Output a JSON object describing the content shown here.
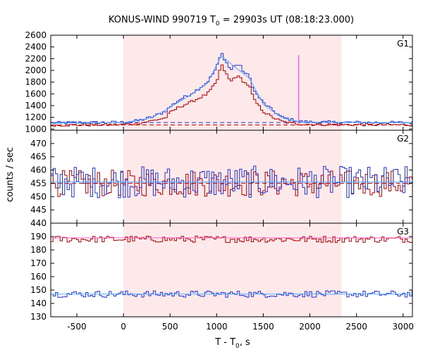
{
  "title": {
    "prefix": "KONUS-WIND 990719 T",
    "sub": "0",
    "suffix": " = 29903s UT (08:18:23.000)"
  },
  "xlabel": {
    "prefix": "T - T",
    "sub": "0",
    "suffix": ", s"
  },
  "ylabel": "counts / sec",
  "colors": {
    "red": "#b00000",
    "blue": "#2233cc",
    "light_blue": "#55aaff",
    "pink_line": "#ff66cc",
    "shade": "#fde8ea"
  },
  "chart_data": {
    "type": "line",
    "xlim": [
      -780,
      3100
    ],
    "shaded_interval": [
      0,
      2340
    ],
    "trigger_marker": {
      "x": 1880,
      "from": 1120,
      "to": 2260
    },
    "x_ticks": [
      -500,
      0,
      500,
      1000,
      1500,
      2000,
      2500,
      3000
    ],
    "x_tick_labels": [
      "-500",
      "0",
      "500",
      "1000",
      "1500",
      "2000",
      "2500",
      "3000"
    ],
    "panels": [
      {
        "id": "G1",
        "label": "G1",
        "ylim": [
          980,
          2600
        ],
        "y_ticks": [
          1000,
          1200,
          1400,
          1600,
          1800,
          2000,
          2200,
          2400,
          2600
        ],
        "y_tick_labels": [
          "1000",
          "1200",
          "1400",
          "1600",
          "1800",
          "2000",
          "2200",
          "2400",
          "2600"
        ],
        "background": [
          {
            "series": "red",
            "value": 1070
          },
          {
            "series": "blue",
            "value": 1110
          }
        ],
        "series": [
          {
            "color": "blue",
            "shape": [
              [
                -780,
                1105
              ],
              [
                0,
                1115
              ],
              [
                150,
                1140
              ],
              [
                300,
                1200
              ],
              [
                450,
                1300
              ],
              [
                500,
                1380
              ],
              [
                600,
                1500
              ],
              [
                700,
                1580
              ],
              [
                800,
                1680
              ],
              [
                900,
                1800
              ],
              [
                950,
                1920
              ],
              [
                1000,
                2050
              ],
              [
                1050,
                2300
              ],
              [
                1100,
                2150
              ],
              [
                1150,
                2000
              ],
              [
                1200,
                2100
              ],
              [
                1250,
                2080
              ],
              [
                1300,
                1960
              ],
              [
                1350,
                1900
              ],
              [
                1400,
                1650
              ],
              [
                1500,
                1450
              ],
              [
                1600,
                1320
              ],
              [
                1700,
                1200
              ],
              [
                1800,
                1160
              ],
              [
                1900,
                1130
              ],
              [
                2000,
                1120
              ],
              [
                2300,
                1115
              ],
              [
                3100,
                1110
              ]
            ],
            "noise": 25
          },
          {
            "color": "light_blue",
            "shape": [
              [
                -780,
                1100
              ],
              [
                0,
                1110
              ],
              [
                300,
                1190
              ],
              [
                500,
                1370
              ],
              [
                700,
                1560
              ],
              [
                900,
                1780
              ],
              [
                1050,
                2250
              ],
              [
                1200,
                2050
              ],
              [
                1350,
                1870
              ],
              [
                1500,
                1420
              ],
              [
                1700,
                1190
              ],
              [
                1900,
                1120
              ],
              [
                3100,
                1105
              ]
            ],
            "noise": 0
          },
          {
            "color": "red",
            "shape": [
              [
                -780,
                1065
              ],
              [
                0,
                1075
              ],
              [
                150,
                1095
              ],
              [
                300,
                1140
              ],
              [
                450,
                1190
              ],
              [
                500,
                1280
              ],
              [
                600,
                1380
              ],
              [
                700,
                1440
              ],
              [
                800,
                1520
              ],
              [
                900,
                1600
              ],
              [
                950,
                1700
              ],
              [
                1000,
                1800
              ],
              [
                1050,
                2100
              ],
              [
                1100,
                1950
              ],
              [
                1150,
                1800
              ],
              [
                1200,
                1900
              ],
              [
                1250,
                1880
              ],
              [
                1300,
                1790
              ],
              [
                1350,
                1740
              ],
              [
                1400,
                1500
              ],
              [
                1500,
                1300
              ],
              [
                1600,
                1200
              ],
              [
                1700,
                1130
              ],
              [
                1800,
                1100
              ],
              [
                1900,
                1085
              ],
              [
                2000,
                1080
              ],
              [
                2300,
                1075
              ],
              [
                3100,
                1070
              ]
            ],
            "noise": 22
          }
        ]
      },
      {
        "id": "G2",
        "label": "G2",
        "ylim": [
          440,
          475
        ],
        "y_ticks": [
          440,
          445,
          450,
          455,
          460,
          465,
          470,
          475
        ],
        "y_tick_labels": [
          "440",
          "445",
          "450",
          "455",
          "460",
          "465",
          "470",
          ""
        ],
        "background": [
          {
            "series": "red",
            "value": 455
          },
          {
            "series": "blue",
            "value": 455.5
          }
        ],
        "series": [
          {
            "color": "red",
            "shape": [
              [
                -780,
                455
              ],
              [
                3100,
                455
              ]
            ],
            "noise": 5
          },
          {
            "color": "blue",
            "shape": [
              [
                -780,
                455.5
              ],
              [
                3100,
                455.5
              ]
            ],
            "noise": 6
          },
          {
            "color": "light_blue",
            "shape": [
              [
                -780,
                455.5
              ],
              [
                3100,
                455.5
              ]
            ],
            "noise": 0
          }
        ]
      },
      {
        "id": "G3",
        "label": "G3",
        "ylim": [
          130,
          200
        ],
        "y_ticks": [
          130,
          140,
          150,
          160,
          170,
          180,
          190,
          200
        ],
        "y_tick_labels": [
          "130",
          "140",
          "150",
          "160",
          "170",
          "180",
          "190",
          ""
        ],
        "background": [],
        "series": [
          {
            "color": "red",
            "shape": [
              [
                -780,
                188
              ],
              [
                3100,
                188
              ]
            ],
            "noise": 2.5
          },
          {
            "color": "blue",
            "shape": [
              [
                -780,
                147
              ],
              [
                3100,
                147
              ]
            ],
            "noise": 2.5
          },
          {
            "color": "pink_line",
            "shape": [
              [
                -780,
                189
              ],
              [
                3100,
                189
              ]
            ],
            "noise": 0
          },
          {
            "color": "light_blue",
            "shape": [
              [
                -780,
                147
              ],
              [
                3100,
                147
              ]
            ],
            "noise": 0
          }
        ]
      }
    ]
  }
}
